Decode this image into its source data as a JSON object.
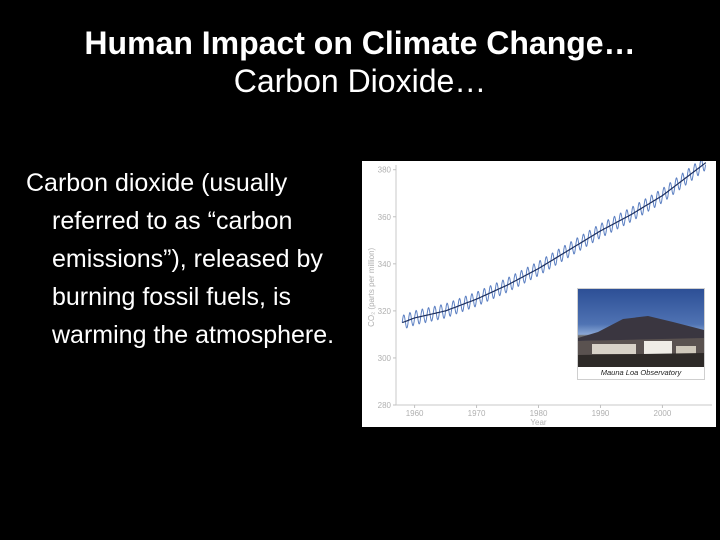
{
  "slide": {
    "title": "Human Impact on Climate Change…",
    "subtitle": "Carbon Dioxide…",
    "body": "Carbon dioxide (usually referred to as “carbon emissions”), released by burning fossil fuels, is warming the atmosphere."
  },
  "chart_data": {
    "type": "line",
    "xlabel": "Year",
    "ylabel": "CO₂ (parts per million)",
    "xlim": [
      1957,
      2008
    ],
    "ylim": [
      280,
      382
    ],
    "x_ticks": [
      "1960",
      "1970",
      "1980",
      "1990",
      "2000"
    ],
    "y_ticks": [
      "380",
      "360",
      "340",
      "320",
      "300",
      "280"
    ],
    "grid": false,
    "series": [
      {
        "trend_x": [
          1958,
          1960,
          1965,
          1970,
          1975,
          1980,
          1985,
          1990,
          1995,
          2000,
          2005,
          2007
        ],
        "trend_y": [
          315,
          317,
          320,
          325,
          331,
          338,
          346,
          354,
          361,
          369,
          379,
          383
        ],
        "seasonal_amplitude_ppm": 3,
        "color": "#5b7fc2"
      }
    ],
    "inset_caption": "Mauna Loa Observatory"
  }
}
